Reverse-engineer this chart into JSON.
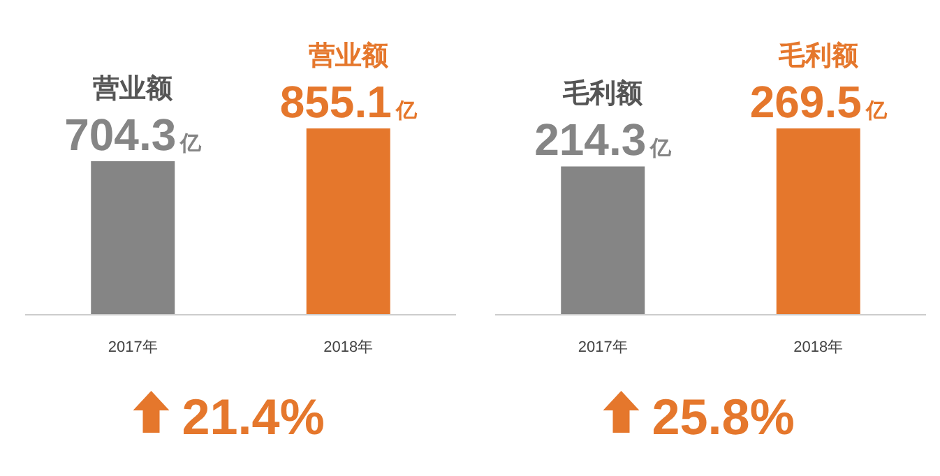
{
  "chart_data": [
    {
      "type": "bar",
      "categories": [
        "2017年",
        "2018年"
      ],
      "values": [
        704.3,
        855.1
      ],
      "colors": [
        "#858585",
        "#e5772c"
      ],
      "value_labels": [
        "704.3亿",
        "855.1亿"
      ],
      "annotations": [
        {
          "text": "营业额",
          "x": "2017年",
          "y": 704.3
        },
        {
          "text": "营业额",
          "x": "2018年",
          "y": 855.1
        },
        "21.4%"
      ]
    },
    {
      "type": "bar",
      "categories": [
        "2017年",
        "2018年"
      ],
      "values": [
        214.3,
        269.5
      ],
      "colors": [
        "#858585",
        "#e5772c"
      ],
      "value_labels": [
        "214.3亿",
        "269.5亿"
      ],
      "annotations": [
        {
          "text": "毛利额",
          "x": "2017年",
          "y": 214.3
        },
        {
          "text": "毛利额",
          "x": "2018年",
          "y": 269.5
        },
        "25.8%"
      ]
    }
  ]
}
